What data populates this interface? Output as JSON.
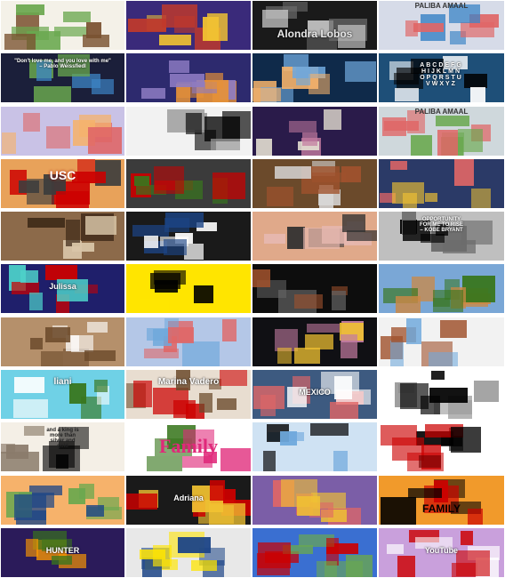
{
  "tiles": [
    {
      "id": "r1c1",
      "bg": "#f4f1e8",
      "accent": "#6aa84f",
      "accent2": "#7a5230"
    },
    {
      "id": "r1c2",
      "bg": "#3a2a7a",
      "accent": "#f1c232",
      "accent2": "#c0392b"
    },
    {
      "id": "r1c3",
      "bg": "#1a1a1a",
      "accent": "#6b6b6b",
      "accent2": "#d9d9d9",
      "title": "Alondra Lobos"
    },
    {
      "id": "r1c4",
      "bg": "#d6dbe8",
      "accent": "#e06666",
      "accent2": "#3d85c6",
      "header": "PALIBA AMAAL"
    },
    {
      "id": "r2c1",
      "bg": "#1b1f3a",
      "accent": "#3d85c6",
      "accent2": "#6aa84f",
      "quote": "\"Don't love me, and you love with me\"\n– Pablo Weissfiedl"
    },
    {
      "id": "r2c2",
      "bg": "#2d2a6e",
      "accent": "#e69138",
      "accent2": "#8e7cc3"
    },
    {
      "id": "r2c3",
      "bg": "#0f2a4a",
      "accent": "#6fa8dc",
      "accent2": "#f6b26b"
    },
    {
      "id": "r2c4",
      "bg": "#1e4f78",
      "accent": "#ffffff",
      "accent2": "#000000",
      "alphabet": "ABCDEFG\nHIJKLMN\nOPQRSTU\nVWXYZ"
    },
    {
      "id": "r3c1",
      "bg": "#c9c2e6",
      "accent": "#e06666",
      "accent2": "#f6b26b"
    },
    {
      "id": "r3c2",
      "bg": "#f2f2f2",
      "accent": "#000000",
      "accent2": "#999999"
    },
    {
      "id": "r3c3",
      "bg": "#2a1b4a",
      "accent": "#c27ba0",
      "accent2": "#e6e1d3"
    },
    {
      "id": "r3c4",
      "bg": "#cfd8dc",
      "accent": "#e06666",
      "accent2": "#6aa84f",
      "header": "PALIBA AMAAL"
    },
    {
      "id": "r4c1",
      "bg": "#e8a25a",
      "accent": "#cc0000",
      "accent2": "#3d3d3d",
      "badge": "USC"
    },
    {
      "id": "r4c2",
      "bg": "#3b3b3b",
      "accent": "#38761d",
      "accent2": "#cc0000"
    },
    {
      "id": "r4c3",
      "bg": "#6b4a2b",
      "accent": "#d9d9d9",
      "accent2": "#a0522d"
    },
    {
      "id": "r4c4",
      "bg": "#2b3a67",
      "accent": "#f1c232",
      "accent2": "#e06666"
    },
    {
      "id": "r5c1",
      "bg": "#8c6a4a",
      "accent": "#3d2817",
      "accent2": "#d9c6a8"
    },
    {
      "id": "r5c2",
      "bg": "#1a1a1a",
      "accent": "#1c4587",
      "accent2": "#ffffff"
    },
    {
      "id": "r5c3",
      "bg": "#e0a98a",
      "accent": "#e6b8af",
      "accent2": "#2f2f2f"
    },
    {
      "id": "r5c4",
      "bg": "#bfbfbf",
      "accent": "#6b6b6b",
      "accent2": "#000000",
      "quote": "OPPORTUNITY\nFOR ME TO RISE\n– KOBE BRYANT"
    },
    {
      "id": "r6c1",
      "bg": "#1f1f6b",
      "accent": "#cc0000",
      "accent2": "#4dd0c9",
      "label": "Julissa"
    },
    {
      "id": "r6c2",
      "bg": "#ffe500",
      "accent": "#000000",
      "accent2": "#ffe500"
    },
    {
      "id": "r6c3",
      "bg": "#0d0d0d",
      "accent": "#666666",
      "accent2": "#a0522d"
    },
    {
      "id": "r6c4",
      "bg": "#7aa7d6",
      "accent": "#cc8844",
      "accent2": "#38761d"
    },
    {
      "id": "r7c1",
      "bg": "#b5906b",
      "accent": "#6b4a2b",
      "accent2": "#ffffff"
    },
    {
      "id": "r7c2",
      "bg": "#b4c7e7",
      "accent": "#e06666",
      "accent2": "#6fa8dc"
    },
    {
      "id": "r7c3",
      "bg": "#101014",
      "accent": "#c27ba0",
      "accent2": "#f1c232"
    },
    {
      "id": "r7c4",
      "bg": "#f2f2f2",
      "accent": "#a0522d",
      "accent2": "#6fa8dc"
    },
    {
      "id": "r8c1",
      "bg": "#6fd1e6",
      "accent": "#38761d",
      "accent2": "#ffffff",
      "name": "liani"
    },
    {
      "id": "r8c2",
      "bg": "#e8ddd0",
      "accent": "#cc0000",
      "accent2": "#6b4a2b",
      "name": "Marina Vadero"
    },
    {
      "id": "r8c3",
      "bg": "#3d5a80",
      "accent": "#e06666",
      "accent2": "#ffffff",
      "label": "MEXICO"
    },
    {
      "id": "r8c4",
      "bg": "#ffffff",
      "accent": "#000000",
      "accent2": "#999999"
    },
    {
      "id": "r9c1",
      "bg": "#f4efe6",
      "accent": "#8a7b6a",
      "accent2": "#000000",
      "quote": "and a king is\nmore than\nsilver and\ngold"
    },
    {
      "id": "r9c2",
      "bg": "#ffffff",
      "accent": "#e0297a",
      "accent2": "#38761d",
      "title": "Family"
    },
    {
      "id": "r9c3",
      "bg": "#cfe2f3",
      "accent": "#000000",
      "accent2": "#6fa8dc"
    },
    {
      "id": "r9c4",
      "bg": "#ffffff",
      "accent": "#000000",
      "accent2": "#cc0000"
    },
    {
      "id": "r10c1",
      "bg": "#f6b26b",
      "accent": "#1c4587",
      "accent2": "#6aa84f"
    },
    {
      "id": "r10c2",
      "bg": "#1a1a1a",
      "accent": "#cc0000",
      "accent2": "#f1c232",
      "label": "Adriana"
    },
    {
      "id": "r10c3",
      "bg": "#7b5ea7",
      "accent": "#e06666",
      "accent2": "#f1c232"
    },
    {
      "id": "r10c4",
      "bg": "#f19a2b",
      "accent": "#000000",
      "accent2": "#cc0000",
      "title": "FAMILY"
    },
    {
      "id": "r11c1",
      "bg": "#2b1b5a",
      "accent": "#ff9900",
      "accent2": "#38761d",
      "label": "HUNTER"
    },
    {
      "id": "r11c2",
      "bg": "#e8e8e8",
      "accent": "#1c4587",
      "accent2": "#ffe500"
    },
    {
      "id": "r11c3",
      "bg": "#3a6fd1",
      "accent": "#6aa84f",
      "accent2": "#cc0000"
    },
    {
      "id": "r11c4",
      "bg": "#c9a0dc",
      "accent": "#cc0000",
      "accent2": "#ffffff",
      "label": "YouTube"
    }
  ]
}
